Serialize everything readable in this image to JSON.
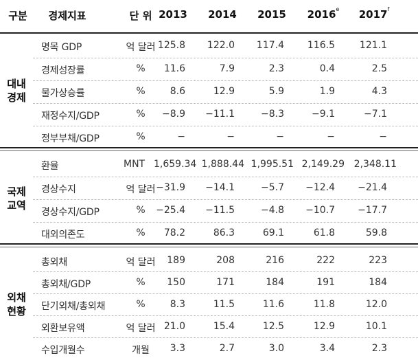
{
  "header": {
    "category": "구분",
    "indicator": "경제지표",
    "unit": "단 위",
    "years": [
      {
        "year": "2013",
        "mark": ""
      },
      {
        "year": "2014",
        "mark": ""
      },
      {
        "year": "2015",
        "mark": ""
      },
      {
        "year": "2016",
        "mark": "e"
      },
      {
        "year": "2017",
        "mark": "f"
      }
    ]
  },
  "groups": [
    {
      "label_line1": "대내",
      "label_line2": "경제",
      "rows": [
        {
          "indicator": "명목 GDP",
          "unit": "억 달러",
          "values": [
            "125.8",
            "122.0",
            "117.4",
            "116.5",
            "121.1"
          ]
        },
        {
          "indicator": "경제성장률",
          "unit": "%",
          "values": [
            "11.6",
            "7.9",
            "2.3",
            "0.4",
            "2.5"
          ]
        },
        {
          "indicator": "물가상승률",
          "unit": "%",
          "values": [
            "8.6",
            "12.9",
            "5.9",
            "1.9",
            "4.3"
          ]
        },
        {
          "indicator": "재정수지/GDP",
          "unit": "%",
          "values": [
            "−8.9",
            "−11.1",
            "−8.3",
            "−9.1",
            "−7.1"
          ]
        },
        {
          "indicator": "정부부채/GDP",
          "unit": "%",
          "values": [
            "−",
            "−",
            "−",
            "−",
            "−"
          ]
        }
      ]
    },
    {
      "label_line1": "국제",
      "label_line2": "교역",
      "rows": [
        {
          "indicator": "환율",
          "unit": "MNT",
          "values": [
            "1,659.34",
            "1,888.44",
            "1,995.51",
            "2,149.29",
            "2,348.11"
          ]
        },
        {
          "indicator": "경상수지",
          "unit": "억 달러",
          "values": [
            "−31.9",
            "−14.1",
            "−5.7",
            "−12.4",
            "−21.4"
          ]
        },
        {
          "indicator": "경상수지/GDP",
          "unit": "%",
          "values": [
            "−25.4",
            "−11.5",
            "−4.8",
            "−10.7",
            "−17.7"
          ]
        },
        {
          "indicator": "대외의존도",
          "unit": "%",
          "values": [
            "78.2",
            "86.3",
            "69.1",
            "61.8",
            "59.8"
          ]
        }
      ]
    },
    {
      "label_line1": "외채",
      "label_line2": "현황",
      "rows": [
        {
          "indicator": "총외채",
          "unit": "억 달러",
          "values": [
            "189",
            "208",
            "216",
            "222",
            "223"
          ]
        },
        {
          "indicator": "총외채/GDP",
          "unit": "%",
          "values": [
            "150",
            "171",
            "184",
            "191",
            "184"
          ]
        },
        {
          "indicator": "단기외채/총외채",
          "unit": "%",
          "values": [
            "8.3",
            "11.5",
            "11.6",
            "11.8",
            "12.0"
          ]
        },
        {
          "indicator": "외환보유액",
          "unit": "억 달러",
          "values": [
            "21.0",
            "15.4",
            "12.5",
            "12.9",
            "10.1"
          ]
        },
        {
          "indicator": "수입개월수",
          "unit": "개월",
          "values": [
            "3.3",
            "2.7",
            "3.0",
            "3.4",
            "2.3"
          ]
        }
      ]
    }
  ]
}
